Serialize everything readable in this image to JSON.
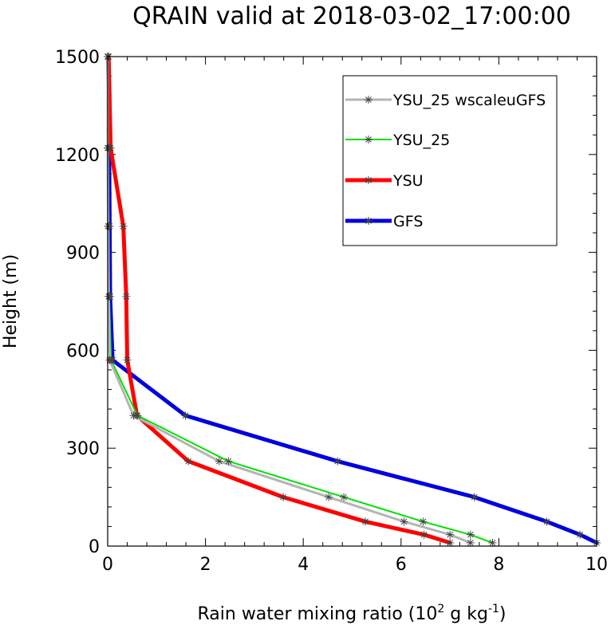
{
  "chart_data": {
    "type": "line",
    "title": "QRAIN valid at 2018-03-02_17:00:00",
    "xlabel": "Rain water mixing ratio (10",
    "xlabel_sup1": "2",
    "xlabel_mid": " g kg",
    "xlabel_sup2": "-1",
    "xlabel_end": ")",
    "ylabel": "Height (m)",
    "xlim": [
      0,
      10
    ],
    "ylim": [
      0,
      1500
    ],
    "xticks": [
      0,
      2,
      4,
      6,
      8,
      10
    ],
    "yticks": [
      0,
      300,
      600,
      900,
      1200,
      1500
    ],
    "grid": false,
    "legend_position": "top-right",
    "series": [
      {
        "name": "YSU_25 wscaleuGFS",
        "color": "#b4b4b4",
        "width": 3,
        "marker": "asterisk",
        "x": [
          7.42,
          7.0,
          6.06,
          4.52,
          2.28,
          0.53,
          0.04,
          0.02,
          0.01,
          0.0,
          0.0
        ],
        "y": [
          10,
          35,
          75,
          150,
          260,
          400,
          570,
          765,
          980,
          1220,
          1500
        ]
      },
      {
        "name": "YSU_25",
        "color": "#00e000",
        "width": 2,
        "marker": "asterisk",
        "x": [
          7.87,
          7.42,
          6.45,
          4.83,
          2.47,
          0.61,
          0.07,
          0.03,
          0.02,
          0.01,
          0.0
        ],
        "y": [
          10,
          35,
          75,
          150,
          260,
          400,
          570,
          765,
          980,
          1220,
          1500
        ]
      },
      {
        "name": "YSU",
        "color": "#ff0000",
        "width": 5,
        "marker": "asterisk",
        "x": [
          7.0,
          6.47,
          5.27,
          3.59,
          1.65,
          0.6,
          0.4,
          0.38,
          0.32,
          0.06,
          0.02
        ],
        "y": [
          10,
          35,
          75,
          150,
          260,
          400,
          570,
          765,
          980,
          1220,
          1500
        ]
      },
      {
        "name": "GFS",
        "color": "#0000e0",
        "width": 5,
        "marker": "asterisk",
        "x": [
          10.0,
          9.66,
          8.98,
          7.5,
          4.7,
          1.59,
          0.1,
          0.05,
          0.04,
          0.03,
          0.01
        ],
        "y": [
          10,
          35,
          75,
          150,
          260,
          400,
          570,
          765,
          980,
          1220,
          1500
        ]
      }
    ]
  }
}
